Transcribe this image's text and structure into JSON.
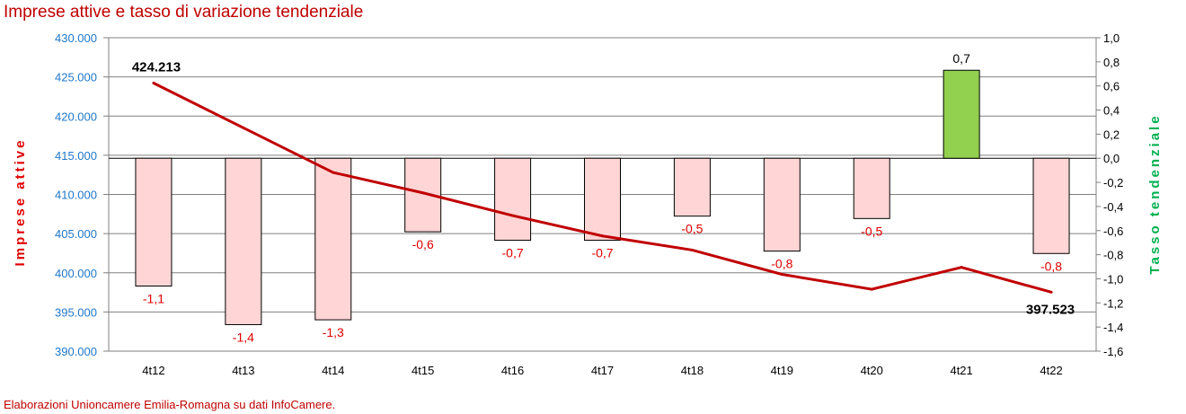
{
  "chart_data": {
    "type": "bar+line",
    "title": "Imprese attive e tasso di variazione tendenziale",
    "footer": "Elaborazioni Unioncamere Emilia-Romagna su dati InfoCamere.",
    "ylabel_left": "Imprese attive",
    "ylabel_right": "Tasso tendenziale",
    "categories": [
      "4t12",
      "4t13",
      "4t14",
      "4t15",
      "4t16",
      "4t17",
      "4t18",
      "4t19",
      "4t20",
      "4t21",
      "4t22"
    ],
    "ylim_left": [
      390000,
      430000
    ],
    "ylim_right": [
      -1.6,
      1.0
    ],
    "yticks_left": [
      "390.000",
      "395.000",
      "400.000",
      "405.000",
      "410.000",
      "415.000",
      "420.000",
      "425.000",
      "430.000"
    ],
    "yticks_right": [
      "-1,6",
      "-1,4",
      "-1,2",
      "-1,0",
      "-0,8",
      "-0,6",
      "-0,4",
      "-0,2",
      "0,0",
      "0,2",
      "0,4",
      "0,6",
      "0,8",
      "1,0"
    ],
    "line_series": {
      "name": "Imprese attive",
      "color": "#c00000",
      "values": [
        424213,
        418500,
        412800,
        410200,
        407300,
        404700,
        402900,
        399800,
        397900,
        400700,
        397523
      ],
      "labels": [
        "424.213",
        "",
        "",
        "",
        "",
        "",
        "",
        "",
        "",
        "",
        "397.523"
      ]
    },
    "bar_series": {
      "name": "Tasso tendenziale",
      "neg_color": "#ffd5d5",
      "pos_color": "#92d050",
      "values": [
        -1.06,
        -1.38,
        -1.34,
        -0.61,
        -0.68,
        -0.68,
        -0.48,
        -0.77,
        -0.5,
        0.73,
        -0.79
      ],
      "labels": [
        "-1,1",
        "-1,4",
        "-1,3",
        "-0,6",
        "-0,7",
        "-0,7",
        "-0,5",
        "-0,8",
        "-0,5",
        "0,7",
        "-0,8"
      ]
    },
    "grid": true
  }
}
